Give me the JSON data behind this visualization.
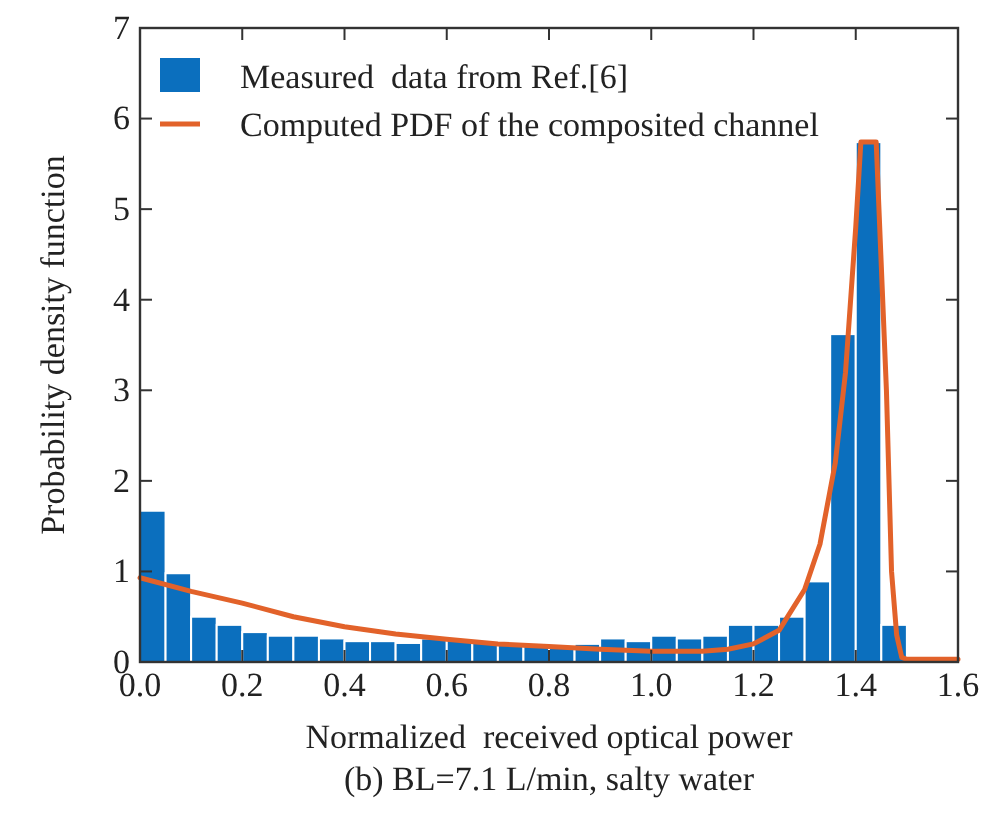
{
  "chart_data": {
    "type": "histogram",
    "title": "(b) BL=7.1 L/min, salty water",
    "xlabel": "Normalized  received optical power",
    "ylabel": "Probability density function",
    "bins": [
      0,
      0.05,
      0.1,
      0.15,
      0.2,
      0.25,
      0.3,
      0.35,
      0.4,
      0.45,
      0.5,
      0.55,
      0.6,
      0.65,
      0.7,
      0.75,
      0.8,
      0.85,
      0.9,
      0.95,
      1.0,
      1.05,
      1.1,
      1.15,
      1.2,
      1.25,
      1.3,
      1.35,
      1.4,
      1.45,
      1.5
    ],
    "series": [
      {
        "name": "Measured  data from Ref.[6]",
        "color": "#0b6fbe",
        "values": [
          1.67,
          0.98,
          0.5,
          0.41,
          0.33,
          0.29,
          0.29,
          0.26,
          0.23,
          0.23,
          0.21,
          0.26,
          0.24,
          0.22,
          0.2,
          0.2,
          0.18,
          0.2,
          0.26,
          0.23,
          0.29,
          0.26,
          0.29,
          0.41,
          0.41,
          0.5,
          0.89,
          3.62,
          5.74,
          0.41
        ]
      },
      {
        "name": "Computed PDF of the composited channel",
        "type": "line",
        "color": "#e2622a",
        "x": [
          0,
          0.1,
          0.2,
          0.3,
          0.4,
          0.5,
          0.6,
          0.7,
          0.8,
          0.9,
          1.0,
          1.1,
          1.15,
          1.2,
          1.25,
          1.3,
          1.33,
          1.36,
          1.38,
          1.4,
          1.41,
          1.44,
          1.46,
          1.47,
          1.48,
          1.49,
          1.5,
          1.6
        ],
        "values": [
          0.93,
          0.78,
          0.65,
          0.5,
          0.39,
          0.31,
          0.25,
          0.2,
          0.17,
          0.14,
          0.12,
          0.12,
          0.14,
          0.2,
          0.35,
          0.8,
          1.3,
          2.2,
          3.2,
          4.8,
          5.74,
          5.74,
          3.0,
          1.0,
          0.3,
          0.05,
          0.03,
          0.03
        ]
      }
    ],
    "xlim": [
      0,
      1.6
    ],
    "xticks": [
      {
        "value": 0,
        "label": "0.0"
      },
      {
        "value": 0.2,
        "label": "0.2"
      },
      {
        "value": 0.4,
        "label": "0.4"
      },
      {
        "value": 0.6,
        "label": "0.6"
      },
      {
        "value": 0.8,
        "label": "0.8"
      },
      {
        "value": 1.0,
        "label": "1.0"
      },
      {
        "value": 1.2,
        "label": "1.2"
      },
      {
        "value": 1.4,
        "label": "1.4"
      },
      {
        "value": 1.6,
        "label": "1.6"
      }
    ],
    "ylim": [
      0,
      7
    ],
    "yticks": [
      0,
      1,
      2,
      3,
      4,
      5,
      6,
      7
    ],
    "legend": "top left",
    "grid": false
  }
}
